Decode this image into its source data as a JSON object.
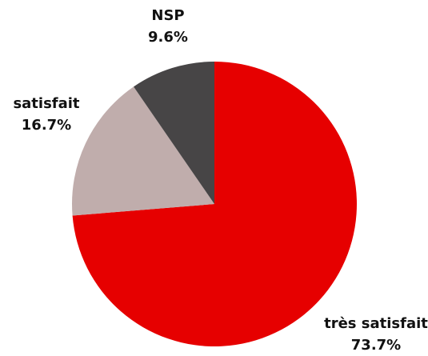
{
  "chart_data": {
    "type": "pie",
    "categories": [
      "très satisfait",
      "satisfait",
      "NSP"
    ],
    "values": [
      73.7,
      16.7,
      9.6
    ],
    "value_labels": [
      "73.7%",
      "16.7%",
      "9.6%"
    ],
    "colors": [
      "#e60000",
      "#c0adac",
      "#474546"
    ]
  }
}
